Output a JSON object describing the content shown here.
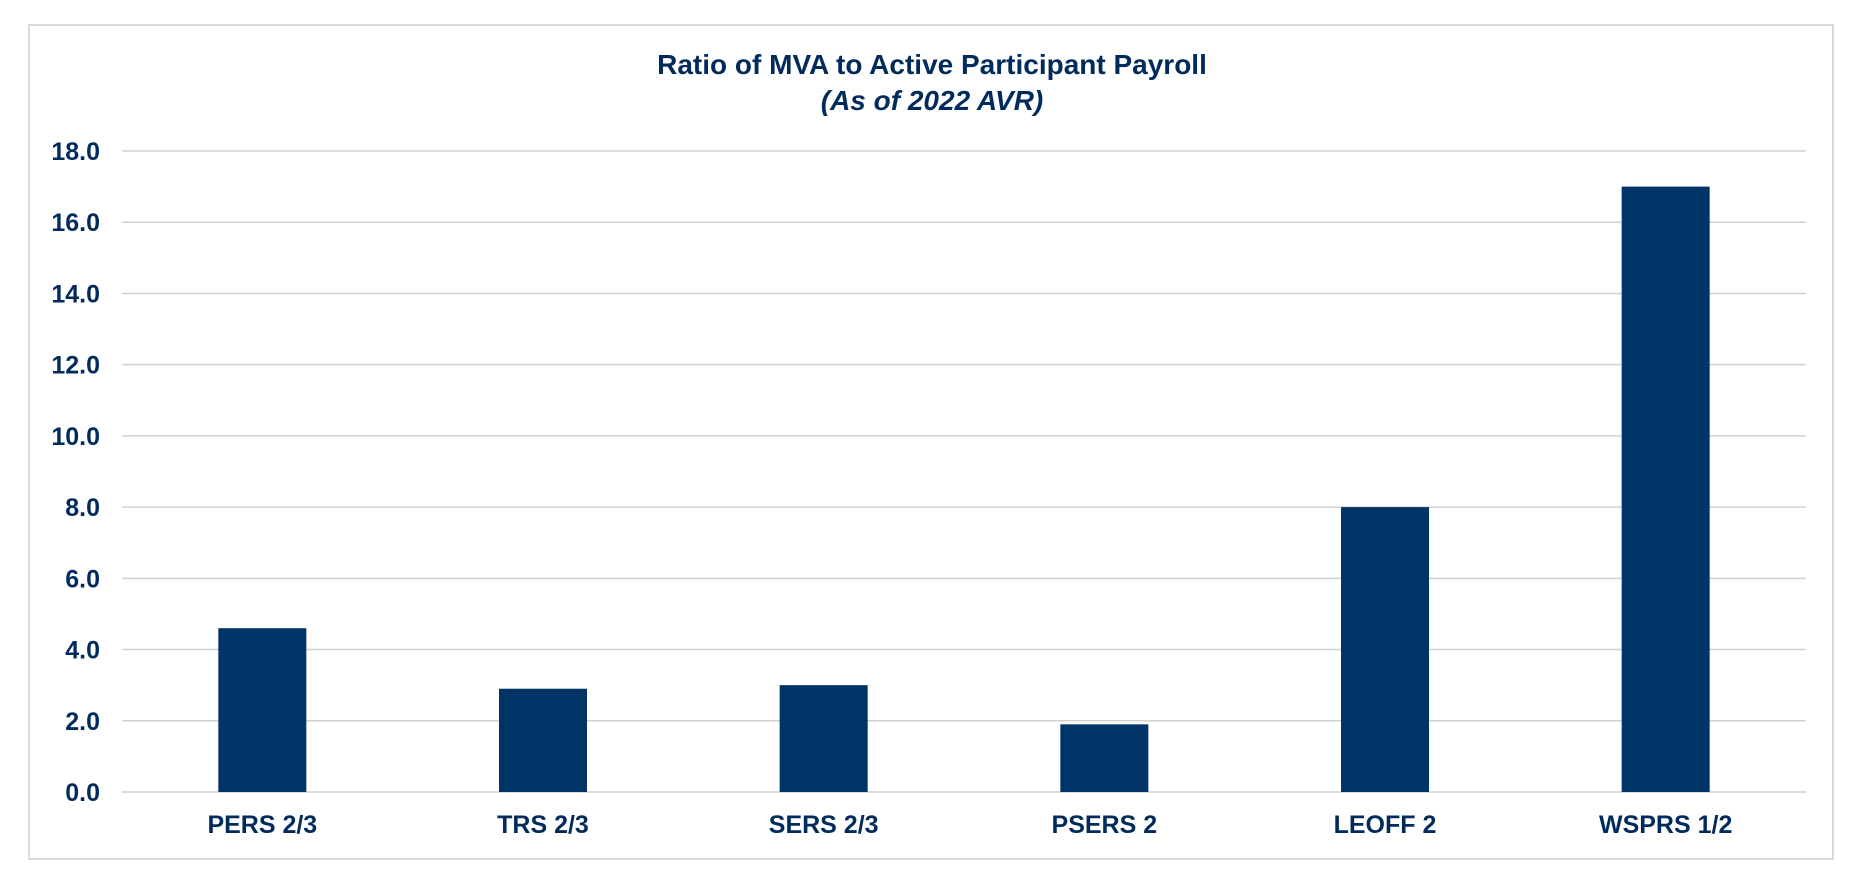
{
  "chart_data": {
    "type": "bar",
    "title": "Ratio of MVA to Active Participant Payroll",
    "subtitle": "(As of 2022 AVR)",
    "categories": [
      "PERS 2/3",
      "TRS 2/3",
      "SERS 2/3",
      "PSERS 2",
      "LEOFF 2",
      "WSPRS 1/2"
    ],
    "values": [
      4.6,
      2.9,
      3.0,
      1.9,
      8.0,
      17.0
    ],
    "ylim": [
      0,
      18
    ],
    "yticks": [
      "0.0",
      "2.0",
      "4.0",
      "6.0",
      "8.0",
      "10.0",
      "12.0",
      "14.0",
      "16.0",
      "18.0"
    ],
    "grid": true,
    "legend": "none",
    "bar_color": "#003366",
    "xlabel": "",
    "ylabel": ""
  }
}
